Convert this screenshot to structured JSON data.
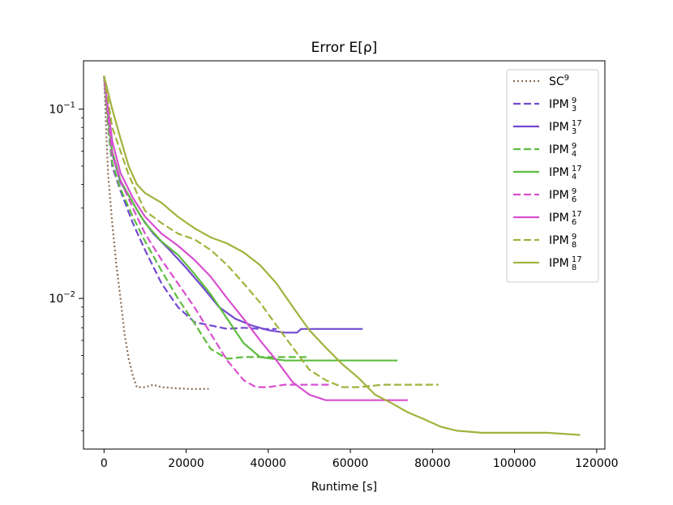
{
  "chart_data": {
    "type": "line",
    "title": "Error E[ρ]",
    "xlabel": "Runtime [s]",
    "ylabel": "",
    "y_scale": "log",
    "xlim": [
      -5000,
      122000
    ],
    "ylim": [
      0.0016,
      0.18
    ],
    "x_ticks": [
      0,
      20000,
      40000,
      60000,
      80000,
      100000,
      120000
    ],
    "x_tick_labels": [
      "0",
      "20000",
      "40000",
      "60000",
      "80000",
      "100000",
      "120000"
    ],
    "y_ticks": [
      0.1,
      0.01
    ],
    "y_tick_labels": [
      {
        "base": "10",
        "exp": "−1"
      },
      {
        "base": "10",
        "exp": "−2"
      }
    ],
    "grid": false,
    "legend_position": "top-right",
    "series": [
      {
        "name": "SC",
        "sup": "9",
        "sub": "",
        "color": "#8c6d52",
        "style": "dotted",
        "points": [
          [
            0,
            0.15
          ],
          [
            500,
            0.08
          ],
          [
            1000,
            0.045
          ],
          [
            2000,
            0.025
          ],
          [
            3000,
            0.015
          ],
          [
            4000,
            0.01
          ],
          [
            5000,
            0.0065
          ],
          [
            6000,
            0.0048
          ],
          [
            7000,
            0.0039
          ],
          [
            8000,
            0.0034
          ],
          [
            10000,
            0.0034
          ],
          [
            12000,
            0.0035
          ],
          [
            14000,
            0.0034
          ],
          [
            18000,
            0.00335
          ],
          [
            22000,
            0.00332
          ],
          [
            25500,
            0.00333
          ]
        ]
      },
      {
        "name": "IPM",
        "sup": "9",
        "sub": "3",
        "color": "#7349d1",
        "style": "dashed",
        "points": [
          [
            0,
            0.15
          ],
          [
            1000,
            0.08
          ],
          [
            2000,
            0.05
          ],
          [
            4000,
            0.037
          ],
          [
            7000,
            0.025
          ],
          [
            10000,
            0.018
          ],
          [
            14000,
            0.012
          ],
          [
            18000,
            0.009
          ],
          [
            22000,
            0.0075
          ],
          [
            26000,
            0.0072
          ],
          [
            30000,
            0.0069
          ],
          [
            34000,
            0.007
          ],
          [
            38000,
            0.0069
          ],
          [
            42000,
            0.0069
          ]
        ]
      },
      {
        "name": "IPM",
        "sup": "17",
        "sub": "3",
        "color": "#7349d1",
        "style": "solid",
        "points": [
          [
            0,
            0.15
          ],
          [
            1000,
            0.09
          ],
          [
            2000,
            0.058
          ],
          [
            4000,
            0.041
          ],
          [
            6000,
            0.035
          ],
          [
            9000,
            0.027
          ],
          [
            12000,
            0.022
          ],
          [
            16000,
            0.018
          ],
          [
            20000,
            0.0145
          ],
          [
            24000,
            0.0115
          ],
          [
            28000,
            0.009
          ],
          [
            32000,
            0.0078
          ],
          [
            36000,
            0.0072
          ],
          [
            40000,
            0.0068
          ],
          [
            44000,
            0.0066
          ],
          [
            47000,
            0.0066
          ],
          [
            48000,
            0.0069
          ],
          [
            56000,
            0.0069
          ],
          [
            63000,
            0.0069
          ]
        ]
      },
      {
        "name": "IPM",
        "sup": "9",
        "sub": "4",
        "color": "#5ebd3e",
        "style": "dashed",
        "points": [
          [
            0,
            0.15
          ],
          [
            1000,
            0.08
          ],
          [
            2000,
            0.052
          ],
          [
            4000,
            0.038
          ],
          [
            7000,
            0.027
          ],
          [
            10000,
            0.02
          ],
          [
            14000,
            0.014
          ],
          [
            18000,
            0.01
          ],
          [
            22000,
            0.0074
          ],
          [
            26000,
            0.0054
          ],
          [
            30000,
            0.0048
          ],
          [
            34000,
            0.0049
          ],
          [
            40000,
            0.0049
          ],
          [
            46000,
            0.0049
          ],
          [
            50000,
            0.0049
          ]
        ]
      },
      {
        "name": "IPM",
        "sup": "17",
        "sub": "4",
        "color": "#5ebd3e",
        "style": "solid",
        "points": [
          [
            0,
            0.15
          ],
          [
            1000,
            0.09
          ],
          [
            2000,
            0.06
          ],
          [
            4000,
            0.042
          ],
          [
            7000,
            0.032
          ],
          [
            10000,
            0.025
          ],
          [
            14000,
            0.02
          ],
          [
            18000,
            0.017
          ],
          [
            22000,
            0.0135
          ],
          [
            26000,
            0.0105
          ],
          [
            30000,
            0.0078
          ],
          [
            34000,
            0.0058
          ],
          [
            38000,
            0.0049
          ],
          [
            44000,
            0.0047
          ],
          [
            50000,
            0.0047
          ],
          [
            60000,
            0.0047
          ],
          [
            71500,
            0.0047
          ]
        ]
      },
      {
        "name": "IPM",
        "sup": "9",
        "sub": "6",
        "color": "#d850cf",
        "style": "dashed",
        "points": [
          [
            0,
            0.15
          ],
          [
            1000,
            0.09
          ],
          [
            2000,
            0.058
          ],
          [
            4000,
            0.042
          ],
          [
            7000,
            0.03
          ],
          [
            10000,
            0.022
          ],
          [
            14000,
            0.016
          ],
          [
            18000,
            0.012
          ],
          [
            22000,
            0.009
          ],
          [
            26000,
            0.0065
          ],
          [
            30000,
            0.0047
          ],
          [
            34000,
            0.0037
          ],
          [
            37000,
            0.0034
          ],
          [
            40000,
            0.0034
          ],
          [
            44000,
            0.0035
          ],
          [
            50000,
            0.0035
          ],
          [
            55000,
            0.0035
          ]
        ]
      },
      {
        "name": "IPM",
        "sup": "17",
        "sub": "6",
        "color": "#d850cf",
        "style": "solid",
        "points": [
          [
            0,
            0.15
          ],
          [
            1000,
            0.1
          ],
          [
            2000,
            0.068
          ],
          [
            4000,
            0.046
          ],
          [
            7000,
            0.034
          ],
          [
            10000,
            0.027
          ],
          [
            14000,
            0.022
          ],
          [
            18000,
            0.019
          ],
          [
            22000,
            0.016
          ],
          [
            26000,
            0.013
          ],
          [
            30000,
            0.01
          ],
          [
            34000,
            0.0078
          ],
          [
            38000,
            0.006
          ],
          [
            42000,
            0.0047
          ],
          [
            46000,
            0.0036
          ],
          [
            50000,
            0.0031
          ],
          [
            54000,
            0.0029
          ],
          [
            60000,
            0.0029
          ],
          [
            66000,
            0.0029
          ],
          [
            74000,
            0.0029
          ]
        ]
      },
      {
        "name": "IPM",
        "sup": "9",
        "sub": "8",
        "color": "#a4b23e",
        "style": "dashed",
        "points": [
          [
            0,
            0.15
          ],
          [
            1000,
            0.11
          ],
          [
            2000,
            0.08
          ],
          [
            4000,
            0.06
          ],
          [
            6000,
            0.045
          ],
          [
            8000,
            0.036
          ],
          [
            10000,
            0.029
          ],
          [
            14000,
            0.025
          ],
          [
            18000,
            0.022
          ],
          [
            22000,
            0.0205
          ],
          [
            26000,
            0.018
          ],
          [
            30000,
            0.015
          ],
          [
            34000,
            0.012
          ],
          [
            38000,
            0.0095
          ],
          [
            42000,
            0.0072
          ],
          [
            46000,
            0.0055
          ],
          [
            50000,
            0.0042
          ],
          [
            54000,
            0.0037
          ],
          [
            58000,
            0.0034
          ],
          [
            62000,
            0.0034
          ],
          [
            68000,
            0.0035
          ],
          [
            75000,
            0.0035
          ],
          [
            81500,
            0.0035
          ]
        ]
      },
      {
        "name": "IPM",
        "sup": "17",
        "sub": "8",
        "color": "#a4b23e",
        "style": "solid",
        "points": [
          [
            0,
            0.15
          ],
          [
            2000,
            0.1
          ],
          [
            4000,
            0.07
          ],
          [
            6000,
            0.05
          ],
          [
            8000,
            0.04
          ],
          [
            10000,
            0.036
          ],
          [
            14000,
            0.032
          ],
          [
            18000,
            0.027
          ],
          [
            22000,
            0.0235
          ],
          [
            26000,
            0.021
          ],
          [
            30000,
            0.0195
          ],
          [
            34000,
            0.0175
          ],
          [
            38000,
            0.015
          ],
          [
            42000,
            0.012
          ],
          [
            46000,
            0.009
          ],
          [
            50000,
            0.0068
          ],
          [
            54000,
            0.0055
          ],
          [
            58000,
            0.0045
          ],
          [
            62000,
            0.0038
          ],
          [
            66000,
            0.0031
          ],
          [
            70000,
            0.0028
          ],
          [
            74000,
            0.0025
          ],
          [
            78000,
            0.0023
          ],
          [
            82000,
            0.0021
          ],
          [
            86000,
            0.002
          ],
          [
            92000,
            0.00195
          ],
          [
            100000,
            0.00195
          ],
          [
            108000,
            0.00195
          ],
          [
            116000,
            0.0019
          ]
        ]
      }
    ]
  }
}
